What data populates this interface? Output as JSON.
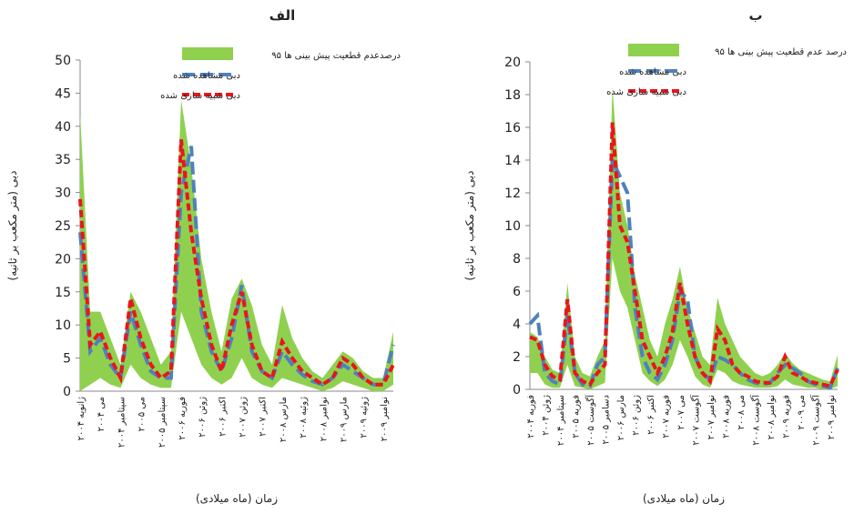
{
  "chart_data": [
    {
      "type": "line",
      "title": "الف",
      "y_label": "دبی (متر مکعب بر ثانیه)",
      "x_label": "زمان (ماه میلادی)",
      "categories": [
        "ژانویه ۲۰۰۴",
        null,
        "می ۲۰۰۴",
        null,
        "سپتامبر ۲۰۰۴",
        null,
        "می ۲۰۰۵",
        null,
        "سپتامبر ۲۰۰۵",
        null,
        "فوریه ۲۰۰۶",
        null,
        "ژوئن ۲۰۰۶",
        null,
        "اکتبر ۲۰۰۶",
        null,
        "ژوئن ۲۰۰۷",
        null,
        "اکتبر ۲۰۰۷",
        null,
        "مارس ۲۰۰۸",
        null,
        "ژوئیه ۲۰۰۸",
        null,
        "نوامبر ۲۰۰۸",
        null,
        "مارس ۲۰۰۹",
        null,
        "ژوئیه ۲۰۰۹",
        null,
        "نوامبر ۲۰۰۹",
        null
      ],
      "ylim": [
        0,
        50
      ],
      "yticks": [
        0,
        5,
        10,
        15,
        20,
        25,
        30,
        35,
        40,
        45,
        50
      ],
      "band": {
        "name": "۹۵ درصدعدم قطعیت پیش بینی ها",
        "color": "#8fd14f",
        "lower": [
          0,
          1,
          2,
          1,
          0.5,
          4,
          2,
          1,
          0.5,
          0.5,
          12,
          8,
          4,
          2,
          1,
          2,
          5,
          2,
          1,
          0.5,
          2,
          1.5,
          1,
          0.5,
          0,
          0.5,
          1.5,
          1,
          0.5,
          0,
          0,
          1
        ],
        "upper": [
          42,
          12,
          12,
          8,
          4,
          15,
          12,
          8,
          4,
          6,
          44,
          34,
          20,
          12,
          6,
          14,
          17,
          13,
          7,
          4,
          13,
          8,
          5,
          3,
          2,
          4,
          6,
          5,
          3,
          2,
          2,
          9
        ]
      },
      "series": [
        {
          "name": "دبی مشاهده شده",
          "color": "#4f81bd",
          "dash": "14 6",
          "values": [
            24,
            6,
            8,
            4,
            2,
            12,
            7,
            3,
            2,
            2,
            30,
            37,
            12,
            6,
            3,
            8,
            16,
            6,
            3,
            2,
            6,
            4,
            2.5,
            1.5,
            1,
            2,
            4,
            3,
            2,
            1,
            1,
            7
          ]
        },
        {
          "name": "دبی شبیه سازی شده",
          "color": "#e8161c",
          "dash": "8 4",
          "values": [
            29,
            7,
            9,
            5,
            2,
            14,
            8,
            4,
            2,
            3,
            38,
            24,
            14,
            7,
            3,
            10,
            15,
            7,
            3,
            2,
            7.5,
            5,
            3,
            2,
            1,
            2,
            5,
            4,
            2,
            1,
            1,
            4
          ]
        }
      ]
    },
    {
      "type": "line",
      "title": "ب",
      "y_label": "دبی (متر مکعب بر ثانیه)",
      "x_label": "زمان (ماه میلادی)",
      "categories": [
        "فوریه ۲۰۰۴",
        null,
        "ژوئن ۲۰۰۴",
        null,
        "سپتامبر ۲۰۰۴",
        null,
        "فوریه ۲۰۰۵",
        null,
        "آگوست ۲۰۰۵",
        null,
        "دسامبر ۲۰۰۵",
        null,
        "مارس ۲۰۰۶",
        null,
        "ژوئن ۲۰۰۶",
        null,
        "اکتبر ۲۰۰۶",
        null,
        "فوریه ۲۰۰۷",
        null,
        "می ۲۰۰۷",
        null,
        "آگوست ۲۰۰۷",
        null,
        "نوامبر ۲۰۰۷",
        null,
        "فوریه ۲۰۰۸",
        null,
        "می ۲۰۰۸",
        null,
        "آگوست ۲۰۰۸",
        null,
        "نوامبر ۲۰۰۸",
        null,
        "فوریه ۲۰۰۹",
        null,
        "می ۲۰۰۹",
        null,
        "آگوست ۲۰۰۹",
        null,
        "نوامبر ۲۰۰۹",
        null
      ],
      "ylim": [
        0,
        20
      ],
      "yticks": [
        0,
        2,
        4,
        6,
        8,
        10,
        12,
        14,
        16,
        18,
        20
      ],
      "band": {
        "name": "۹۵ درصد عدم قطعیت پیش بینی ها",
        "color": "#8fd14f",
        "lower": [
          1,
          1,
          0.3,
          0.1,
          0.1,
          1.5,
          0.2,
          0.1,
          0,
          0.2,
          0.4,
          8,
          6,
          5,
          3,
          1,
          0.5,
          0.2,
          0.6,
          1.5,
          3,
          2,
          0.8,
          0.3,
          0.1,
          1.2,
          1,
          0.5,
          0.3,
          0.2,
          0.1,
          0.1,
          0.1,
          0.2,
          0.6,
          0.3,
          0.2,
          0.1,
          0.1,
          0,
          0,
          0.2
        ],
        "upper": [
          3.5,
          3.2,
          2,
          1.2,
          1,
          6.5,
          2,
          1,
          0.8,
          2,
          3,
          18.5,
          12,
          10,
          7,
          5,
          3,
          2,
          4,
          5.5,
          7.5,
          5,
          3.5,
          2,
          1.5,
          5.6,
          4,
          3,
          2,
          1.5,
          1,
          0.8,
          1,
          1.5,
          2.2,
          1.6,
          1.2,
          1,
          0.8,
          0.6,
          0.5,
          2.1
        ]
      },
      "series": [
        {
          "name": "دبی مشاهده شده",
          "color": "#4f81bd",
          "dash": "14 6",
          "values": [
            4,
            4.5,
            1,
            0.5,
            0.3,
            4.5,
            1,
            0.3,
            0.2,
            1.5,
            2,
            14,
            13,
            12,
            5,
            2,
            1,
            0.6,
            1.5,
            3,
            6,
            5.5,
            2,
            1,
            0.6,
            2,
            1.8,
            1.5,
            1,
            0.6,
            0.4,
            0.3,
            0.4,
            1,
            1.5,
            1.3,
            1,
            0.5,
            0.3,
            0.2,
            0.1,
            1.3
          ]
        },
        {
          "name": "دبی شبیه سازی شده",
          "color": "#e8161c",
          "dash": "8 4",
          "values": [
            3.2,
            3,
            1.5,
            0.8,
            0.6,
            5.5,
            1,
            0.5,
            0.3,
            1,
            1.5,
            16.3,
            10,
            9,
            6,
            3,
            2,
            1,
            2,
            3.5,
            6.5,
            4,
            2,
            1,
            0.5,
            3.7,
            3,
            1.5,
            1,
            0.8,
            0.5,
            0.4,
            0.4,
            0.8,
            2,
            1,
            0.8,
            0.5,
            0.4,
            0.3,
            0.2,
            1.2
          ]
        }
      ]
    }
  ]
}
